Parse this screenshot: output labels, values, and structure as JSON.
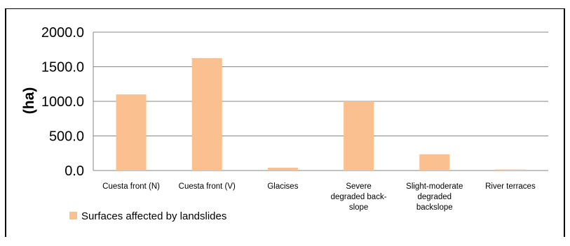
{
  "chart_data": {
    "type": "bar",
    "title": "",
    "xlabel": "",
    "ylabel": "(ha)",
    "ylim": [
      0,
      2000
    ],
    "y_ticks": [
      "0.0",
      "500.0",
      "1000.0",
      "1500.0",
      "2000.0"
    ],
    "grid": true,
    "legend_position": "bottom-left",
    "categories": [
      [
        "Cuesta front (N)"
      ],
      [
        "Cuesta front (V)"
      ],
      [
        "Glacises"
      ],
      [
        "Severe",
        "degraded back-",
        "slope"
      ],
      [
        "Slight-moderate",
        "degraded",
        "backslope"
      ],
      [
        "River terraces"
      ]
    ],
    "series": [
      {
        "name": "Surfaces affected by landslides",
        "values": [
          1100,
          1625,
          40,
          1000,
          235,
          15
        ],
        "color": "#FAC08F"
      }
    ]
  }
}
